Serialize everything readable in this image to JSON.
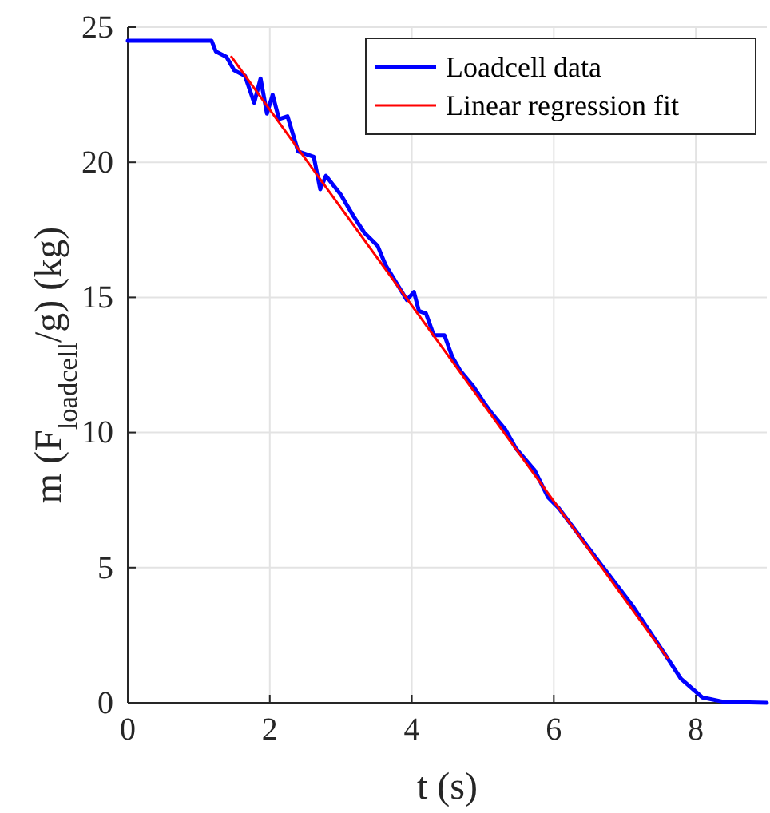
{
  "chart_data": {
    "type": "line",
    "xlabel": "t (s)",
    "ylabel": "m (F$_{loadcell}$/g) (kg)",
    "xlim": [
      0,
      9
    ],
    "ylim": [
      0,
      25
    ],
    "xticks": [
      0,
      2,
      4,
      6,
      8
    ],
    "yticks": [
      0,
      5,
      10,
      15,
      20,
      25
    ],
    "grid": true,
    "legend": "top right",
    "line_style": "solid",
    "marker": "none",
    "series": [
      {
        "name": "Loadcell data",
        "color": "#0000ff",
        "x": [
          0,
          1.18,
          1.24,
          1.39,
          1.5,
          1.65,
          1.78,
          1.87,
          1.96,
          2.04,
          2.13,
          2.25,
          2.4,
          2.62,
          2.71,
          2.79,
          3.0,
          3.18,
          3.33,
          3.52,
          3.63,
          3.93,
          4.03,
          4.1,
          4.2,
          4.31,
          4.46,
          4.57,
          4.68,
          4.87,
          5.02,
          5.13,
          5.32,
          5.47,
          5.73,
          5.92,
          6.07,
          6.67,
          7.12,
          7.57,
          7.79,
          8.09,
          8.38,
          9
        ],
        "values": [
          24.5,
          24.5,
          24.1,
          23.9,
          23.4,
          23.2,
          22.2,
          23.1,
          21.8,
          22.5,
          21.6,
          21.7,
          20.4,
          20.2,
          19.0,
          19.5,
          18.8,
          18.0,
          17.4,
          16.9,
          16.2,
          14.9,
          15.2,
          14.5,
          14.4,
          13.6,
          13.6,
          12.8,
          12.3,
          11.7,
          11.1,
          10.7,
          10.1,
          9.4,
          8.6,
          7.6,
          7.2,
          5.1,
          3.55,
          1.78,
          0.89,
          0.2,
          0.04,
          0
        ]
      },
      {
        "name": "Linear regression fit",
        "color": "#ff0000",
        "x": [
          1.46,
          7.6
        ],
        "values": [
          23.9,
          1.66
        ]
      }
    ]
  }
}
